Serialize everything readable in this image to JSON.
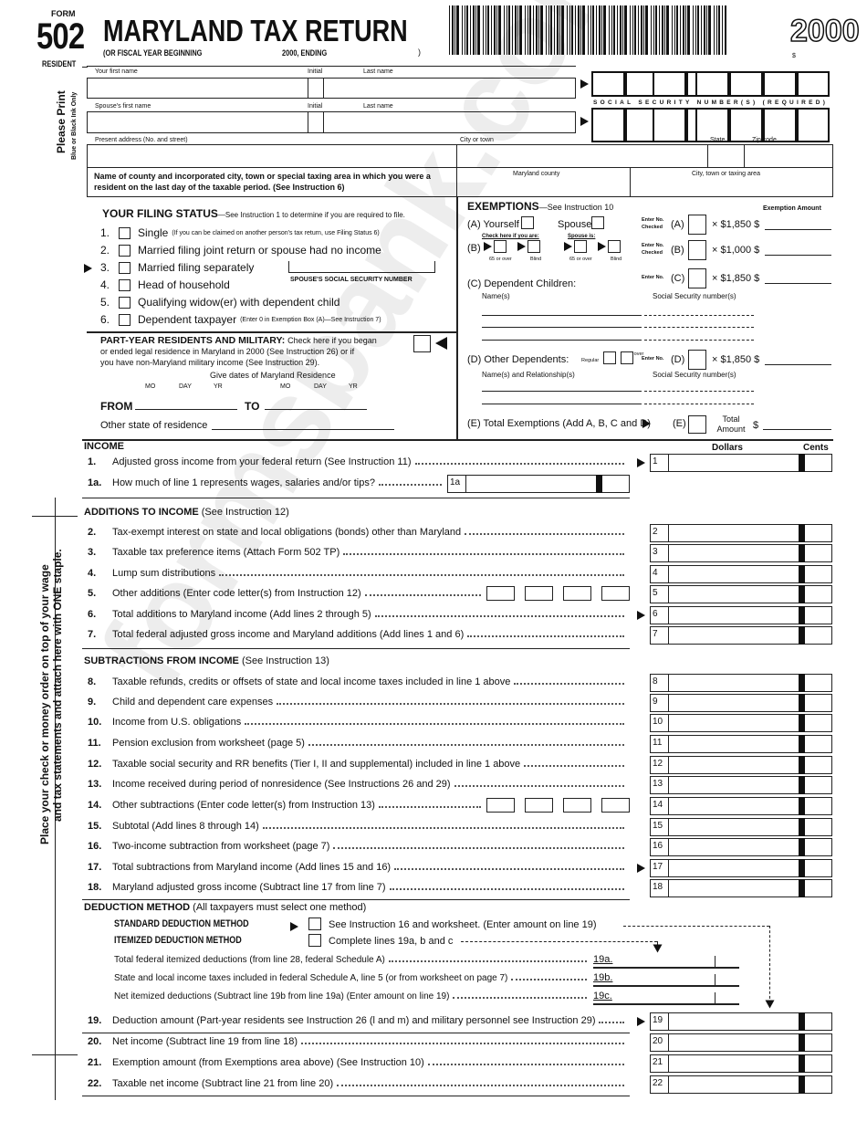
{
  "header": {
    "form_label": "FORM",
    "form_number": "502",
    "form_type": "RESIDENT",
    "title": "MARYLAND TAX RETURN",
    "fiscal_year": "(OR FISCAL YEAR BEGINNING",
    "fiscal_mid": "2000, ENDING",
    "fiscal_end": ")",
    "year": "2000",
    "dollar": "$"
  },
  "side": {
    "print": "Please Print",
    "ink": "Blue or Black Ink Only",
    "staple": "Place your check or money order on top of your wage",
    "staple2": "and tax statements and attach here with ONE staple."
  },
  "identity": {
    "first_name": "Your first name",
    "initial": "Initial",
    "last_name": "Last name",
    "spouse_first": "Spouse's first name",
    "spouse_initial": "Initial",
    "spouse_last": "Last name",
    "ssn_caption": "SOCIAL SECURITY NUMBER(S) (REQUIRED)",
    "address": "Present address (No. and street)",
    "city": "City or town",
    "state": "State",
    "zip": "Zip code",
    "county_prompt": "Name of county and incorporated city, town or special taxing area in which you were a resident on the last day of the taxable period. (See Instruction 6)",
    "county": "Maryland county",
    "city_area": "City, town or taxing area"
  },
  "filing": {
    "title": "YOUR FILING STATUS",
    "subtitle": "—See Instruction 1 to determine if you are required to file.",
    "options": [
      {
        "num": "1.",
        "label": "Single",
        "note": "(If you can be claimed on another person's tax return, use Filing Status 6)"
      },
      {
        "num": "2.",
        "label": "Married filing joint return or spouse had no income",
        "note": ""
      },
      {
        "num": "3.",
        "label": "Married filing separately",
        "note": ""
      },
      {
        "num": "4.",
        "label": "Head of household",
        "note": ""
      },
      {
        "num": "5.",
        "label": "Qualifying widow(er) with dependent child",
        "note": ""
      },
      {
        "num": "6.",
        "label": "Dependent taxpayer",
        "note": "(Enter 0 in Exemption Box (A)—See Instruction 7)"
      }
    ],
    "spouse_ssn": "SPOUSE'S SOCIAL SECURITY NUMBER"
  },
  "part_year": {
    "title": "PART-YEAR RESIDENTS AND MILITARY:",
    "line1": "Check here if you began",
    "line2": "or ended legal residence in Maryland in 2000 (See Instruction 26) or if",
    "line3": "you have non-Maryland military income (See Instruction 29).",
    "dates": "Give dates of Maryland Residence",
    "mo": "MO",
    "day": "DAY",
    "yr": "YR",
    "from": "FROM",
    "to": "TO",
    "other_state": "Other state of residence"
  },
  "exemptions": {
    "title": "EXEMPTIONS",
    "subtitle": "—See Instruction 10",
    "amount_header": "Exemption Amount",
    "a_label": "(A) Yourself",
    "spouse": "Spouse",
    "b_label": "(B)",
    "check_if": "Check here if you are:",
    "spouse_is": "Spouse is:",
    "over65": "65 or over",
    "blind": "Blind",
    "enter_checked": "Enter No. Checked",
    "enter_no": "Enter No.",
    "rows": [
      {
        "code": "(A)",
        "rate": "× $1,850 $"
      },
      {
        "code": "(B)",
        "rate": "× $1,000 $"
      },
      {
        "code": "(C)",
        "rate": "× $1,850 $"
      },
      {
        "code": "(D)",
        "rate": "× $1,850  $"
      }
    ],
    "c_label": "(C) Dependent Children:",
    "names": "Name(s)",
    "ssns": "Social Security number(s)",
    "d_label": "(D) Other Dependents:",
    "regular": "Regular",
    "d65": "65 or over",
    "names_rel": "Name(s) and Relationship(s)",
    "e_label": "(E) Total Exemptions (Add A, B, C and D)",
    "e_code": "(E)",
    "total_amount": "Total Amount",
    "dollar": "$"
  },
  "income": {
    "title": "INCOME",
    "dollars": "Dollars",
    "cents": "Cents"
  },
  "sections": {
    "additions": "ADDITIONS TO INCOME",
    "additions_note": "(See Instruction 12)",
    "subtractions": "SUBTRACTIONS FROM INCOME",
    "subtractions_note": "(See Instruction 13)"
  },
  "lines": [
    {
      "num": "1.",
      "text": "Adjusted gross income from your federal return (See Instruction 11)",
      "box": "1",
      "arrow": true
    },
    {
      "num": "1a.",
      "text": "How much of line 1 represents wages, salaries and/or tips?",
      "box": "1a"
    },
    {
      "num": "2.",
      "text": "Tax-exempt interest on state and local obligations (bonds) other than Maryland",
      "box": "2"
    },
    {
      "num": "3.",
      "text": "Taxable tax preference items (Attach Form 502 TP)",
      "box": "3"
    },
    {
      "num": "4.",
      "text": "Lump sum distributions",
      "box": "4"
    },
    {
      "num": "5.",
      "text": "Other additions (Enter code letter(s) from Instruction 12)",
      "box": "5",
      "codes": true
    },
    {
      "num": "6.",
      "text": "Total additions to Maryland income (Add lines 2 through 5)",
      "box": "6",
      "arrow": true
    },
    {
      "num": "7.",
      "text": "Total federal adjusted gross income and Maryland additions (Add lines 1 and 6)",
      "box": "7"
    },
    {
      "num": "8.",
      "text": "Taxable refunds, credits or offsets of state and local income taxes included in line 1 above",
      "box": "8"
    },
    {
      "num": "9.",
      "text": "Child and dependent care expenses",
      "box": "9"
    },
    {
      "num": "10.",
      "text": "Income from U.S. obligations",
      "box": "10"
    },
    {
      "num": "11.",
      "text": "Pension exclusion from worksheet (page 5)",
      "box": "11"
    },
    {
      "num": "12.",
      "text": "Taxable social security and RR benefits (Tier I, II and supplemental) included in line 1 above",
      "box": "12"
    },
    {
      "num": "13.",
      "text": "Income received during period of nonresidence (See Instructions 26 and 29)",
      "box": "13"
    },
    {
      "num": "14.",
      "text": "Other subtractions (Enter code letter(s) from Instruction 13)",
      "box": "14",
      "codes": true
    },
    {
      "num": "15.",
      "text": "Subtotal (Add lines 8 through 14)",
      "box": "15"
    },
    {
      "num": "16.",
      "text": "Two-income subtraction from worksheet (page 7)",
      "box": "16"
    },
    {
      "num": "17.",
      "text": "Total subtractions from Maryland income (Add lines 15 and 16)",
      "box": "17",
      "arrow": true
    },
    {
      "num": "18.",
      "text": "Maryland adjusted gross income (Subtract line 17 from line 7)",
      "box": "18"
    },
    {
      "num": "19.",
      "text": "Deduction amount (Part-year residents see Instruction 26 (l and m) and military personnel see Instruction 29)",
      "box": "19",
      "arrow": true
    },
    {
      "num": "20.",
      "text": "Net income (Subtract line 19 from line 18)",
      "box": "20"
    },
    {
      "num": "21.",
      "text": "Exemption amount (from Exemptions area above) (See Instruction 10)",
      "box": "21"
    },
    {
      "num": "22.",
      "text": "Taxable net income (Subtract line 21 from line 20)",
      "box": "22"
    }
  ],
  "deduction": {
    "title": "DEDUCTION METHOD",
    "note": "(All taxpayers must select one method)",
    "standard": "STANDARD DEDUCTION METHOD",
    "standard_text": "See Instruction 16 and worksheet. (Enter amount on line 19)",
    "itemized": "ITEMIZED DEDUCTION METHOD",
    "itemized_text": "Complete lines 19a, b and c",
    "sub": [
      {
        "text": "Total federal itemized deductions (from line 28, federal Schedule A)",
        "code": "19a."
      },
      {
        "text": "State and local income taxes included in federal Schedule A, line 5 (or from worksheet on page 7)",
        "code": "19b."
      },
      {
        "text": "Net itemized deductions (Subtract line 19b from line 19a) (Enter amount on line 19)",
        "code": "19c."
      }
    ]
  },
  "watermark": "formsbank.com"
}
